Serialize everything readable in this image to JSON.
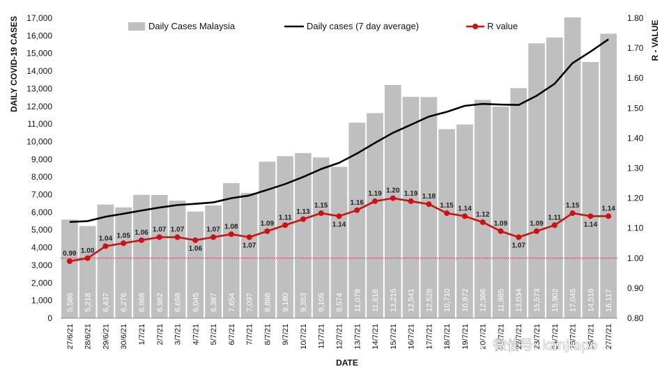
{
  "chart_data": {
    "type": "bar",
    "xlabel": "DATE",
    "ylabel": "DAILY COVID-19 CASES",
    "y2label": "R - VALUE",
    "ylim": [
      0,
      17000
    ],
    "y2lim": [
      0.8,
      1.8
    ],
    "yticks": [
      "0",
      "1,000",
      "2,000",
      "3,000",
      "4,000",
      "5,000",
      "6,000",
      "7,000",
      "8,000",
      "9,000",
      "10,000",
      "11,000",
      "12,000",
      "13,000",
      "14,000",
      "15,000",
      "16,000",
      "17,000"
    ],
    "y2ticks": [
      "0.80",
      "0.90",
      "1.00",
      "1.10",
      "1.20",
      "1.30",
      "1.40",
      "1.50",
      "1.60",
      "1.70",
      "1.80"
    ],
    "categories": [
      "27/6/21",
      "28/6/21",
      "29/6/21",
      "30/6/21",
      "1/7/21",
      "2/7/21",
      "3/7/21",
      "4/7/21",
      "5/7/21",
      "6/7/21",
      "7/7/21",
      "8/7/21",
      "9/7/21",
      "10/7/21",
      "11/7/21",
      "12/7/21",
      "13/7/21",
      "14/7/21",
      "15/7/21",
      "16/7/21",
      "17/7/21",
      "18/7/21",
      "19/7/21",
      "20/7/21",
      "21/7/21",
      "22/7/21",
      "23/7/21",
      "24/7/21",
      "25/7/21",
      "26/7/21",
      "27/7/21"
    ],
    "series": [
      {
        "name": "Daily Cases Malaysia",
        "kind": "bar",
        "color": "#bfbfbf",
        "values": [
          5586,
          5218,
          6437,
          6276,
          6988,
          6982,
          6658,
          6045,
          6387,
          7654,
          7097,
          8868,
          9180,
          9353,
          9105,
          8574,
          11079,
          11618,
          13215,
          12541,
          12528,
          10710,
          10972,
          12366,
          11985,
          13034,
          15573,
          15902,
          17045,
          14516,
          16117
        ],
        "value_labels": [
          "5,586",
          "5,218",
          "6,437",
          "6,276",
          "6,988",
          "6,982",
          "6,658",
          "6,045",
          "6,387",
          "7,654",
          "7,097",
          "8,868",
          "9,180",
          "9,353",
          "9,105",
          "8,574",
          "11,079",
          "11,618",
          "13,215",
          "12,541",
          "12,528",
          "10,710",
          "10,972",
          "12,366",
          "11,985",
          "13,034",
          "15,573",
          "15,902",
          "17,045",
          "14,516",
          "16,117"
        ]
      },
      {
        "name": "Daily cases (7 day average)",
        "kind": "line",
        "color": "#000000",
        "values": [
          5450,
          5500,
          5750,
          5920,
          6100,
          6270,
          6410,
          6480,
          6560,
          6800,
          6950,
          7270,
          7600,
          8000,
          8450,
          8800,
          9330,
          9930,
          10500,
          10960,
          11420,
          11690,
          12030,
          12140,
          12100,
          12080,
          12600,
          13280,
          14450,
          15100,
          15800
        ]
      },
      {
        "name": "R value",
        "kind": "line",
        "axis": "right",
        "color": "#cc1111",
        "values": [
          0.99,
          1.0,
          1.04,
          1.05,
          1.06,
          1.07,
          1.07,
          1.06,
          1.07,
          1.08,
          1.07,
          1.09,
          1.11,
          1.13,
          1.15,
          1.14,
          1.16,
          1.19,
          1.2,
          1.19,
          1.18,
          1.15,
          1.14,
          1.12,
          1.09,
          1.07,
          1.09,
          1.11,
          1.15,
          1.14,
          1.14
        ],
        "value_labels": [
          "0.99",
          "1.00",
          "1.04",
          "1.05",
          "1.06",
          "1.07",
          "1.07",
          "1.06",
          "1.07",
          "1.08",
          "1.07",
          "1.09",
          "1.11",
          "1.13",
          "1.15",
          "1.14",
          "1.16",
          "1.19",
          "1.20",
          "1.19",
          "1.18",
          "1.15",
          "1.14",
          "1.12",
          "1.09",
          "1.07",
          "1.09",
          "1.11",
          "1.15",
          "1.14",
          "1.14"
        ]
      }
    ],
    "reference_line": {
      "axis": "right",
      "value": 1.0,
      "color": "#cc1111",
      "style": "dotted"
    },
    "grid": false,
    "legend": "top"
  },
  "watermark": {
    "text": "微信号: kanjiapo"
  }
}
